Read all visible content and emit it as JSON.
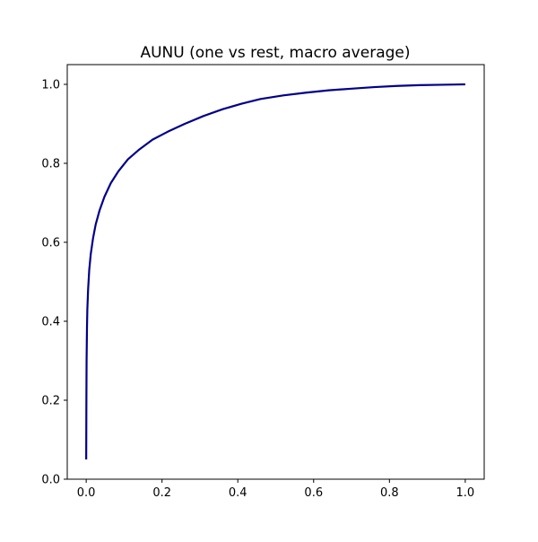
{
  "chart_data": {
    "type": "line",
    "title": "AUNU (one vs rest, macro average)",
    "xlabel": "",
    "ylabel": "",
    "xlim": [
      -0.05,
      1.05
    ],
    "ylim": [
      0.0,
      1.05
    ],
    "xticks": [
      0.0,
      0.2,
      0.4,
      0.6,
      0.8,
      1.0
    ],
    "yticks": [
      0.0,
      0.2,
      0.4,
      0.6,
      0.8,
      1.0
    ],
    "xtick_labels": [
      "0.0",
      "0.2",
      "0.4",
      "0.6",
      "0.8",
      "1.0"
    ],
    "ytick_labels": [
      "0.0",
      "0.2",
      "0.4",
      "0.6",
      "0.8",
      "1.0"
    ],
    "grid": false,
    "series": [
      {
        "color": "#00008b",
        "x": [
          0.0,
          0.0005,
          0.001,
          0.002,
          0.003,
          0.005,
          0.008,
          0.012,
          0.018,
          0.025,
          0.035,
          0.048,
          0.065,
          0.085,
          0.11,
          0.14,
          0.175,
          0.215,
          0.26,
          0.31,
          0.36,
          0.41,
          0.46,
          0.52,
          0.58,
          0.64,
          0.7,
          0.76,
          0.82,
          0.88,
          0.94,
          1.0
        ],
        "y": [
          0.05,
          0.2,
          0.3,
          0.38,
          0.43,
          0.48,
          0.53,
          0.57,
          0.61,
          0.645,
          0.68,
          0.715,
          0.75,
          0.78,
          0.81,
          0.835,
          0.86,
          0.88,
          0.9,
          0.92,
          0.937,
          0.951,
          0.963,
          0.972,
          0.979,
          0.985,
          0.989,
          0.993,
          0.996,
          0.998,
          0.999,
          1.0
        ]
      }
    ]
  },
  "colors": {
    "line": "#00008b",
    "axes": "#000000",
    "background": "#ffffff"
  }
}
